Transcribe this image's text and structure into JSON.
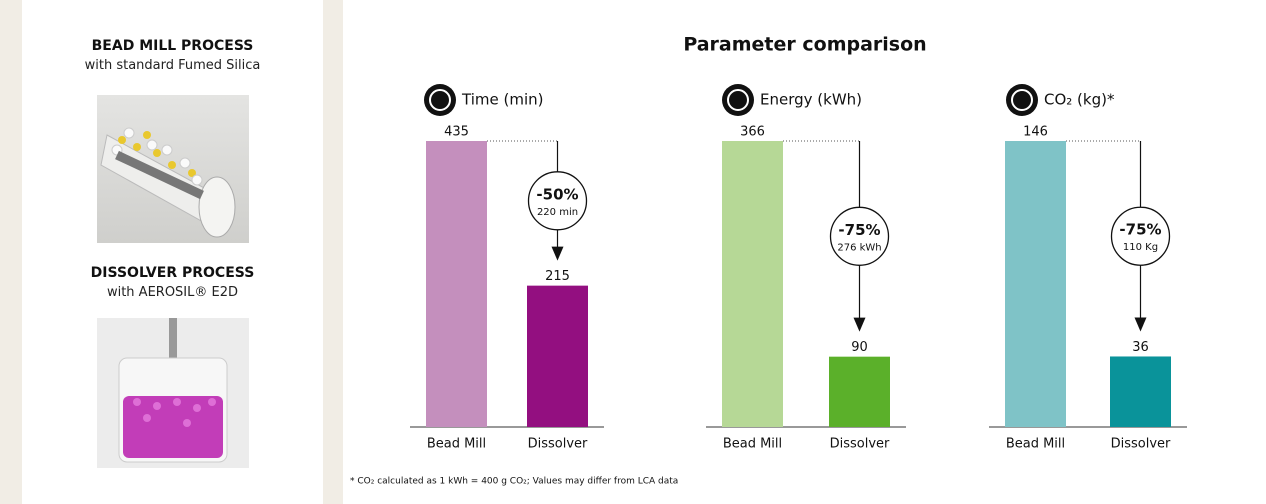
{
  "left_panel": {
    "bead_mill": {
      "title": "BEAD MILL PROCESS",
      "subtitle": "with standard Fumed Silica"
    },
    "dissolver": {
      "title": "DISSOLVER PROCESS",
      "subtitle": "with AEROSIL® E2D"
    }
  },
  "header": {
    "title": "Parameter comparison"
  },
  "chart_data": [
    {
      "type": "bar",
      "title": "Time (min)",
      "categories": [
        "Bead Mill",
        "Dissolver"
      ],
      "values": [
        435,
        215
      ],
      "colors": [
        "#c48fbd",
        "#930f80"
      ],
      "ylim": [
        0,
        435
      ],
      "change_label": "-50%",
      "difference_label": "220 min"
    },
    {
      "type": "bar",
      "title": "Energy (kWh)",
      "categories": [
        "Bead Mill",
        "Dissolver"
      ],
      "values": [
        366,
        90
      ],
      "colors": [
        "#b6d896",
        "#5bb02a"
      ],
      "ylim": [
        0,
        366
      ],
      "change_label": "-75%",
      "difference_label": "276 kWh"
    },
    {
      "type": "bar",
      "title": "CO₂ (kg)*",
      "categories": [
        "Bead Mill",
        "Dissolver"
      ],
      "values": [
        146,
        36
      ],
      "colors": [
        "#7fc3c7",
        "#0a939a"
      ],
      "ylim": [
        0,
        146
      ],
      "change_label": "-75%",
      "difference_label": "110 Kg"
    }
  ],
  "footnote": "* CO₂ calculated as 1 kWh = 400 g CO₂; Values may differ from LCA data"
}
